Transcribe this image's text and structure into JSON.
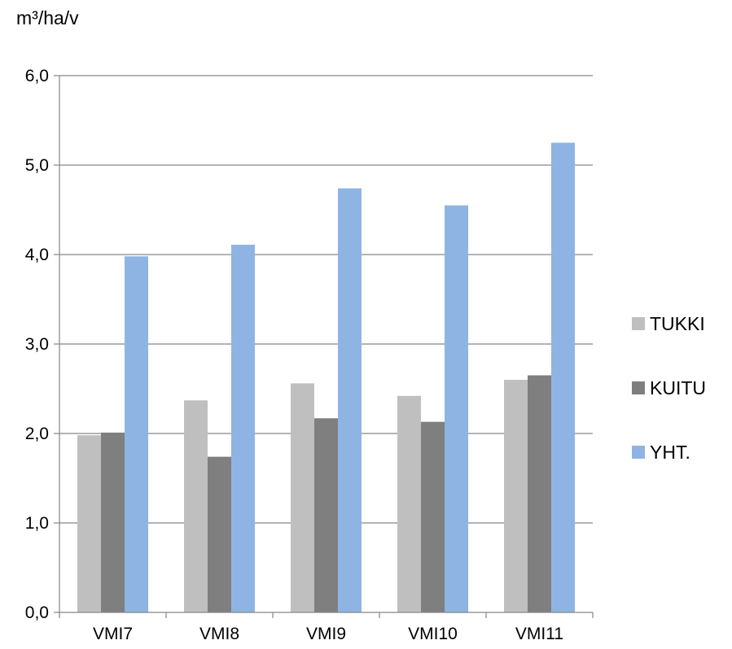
{
  "chart_data": {
    "type": "bar",
    "ylabel": "m³/ha/v",
    "categories": [
      "VMI7",
      "VMI8",
      "VMI9",
      "VMI10",
      "VMI11"
    ],
    "series": [
      {
        "name": "TUKKI",
        "color": "#bfbfbf",
        "values": [
          1.98,
          2.37,
          2.56,
          2.42,
          2.6
        ]
      },
      {
        "name": "KUITU",
        "color": "#7f7f7f",
        "values": [
          2.01,
          1.74,
          2.17,
          2.13,
          2.65
        ]
      },
      {
        "name": "YHT.",
        "color": "#8eb4e3",
        "values": [
          3.98,
          4.11,
          4.74,
          4.55,
          5.25
        ]
      }
    ],
    "ylim": [
      0,
      6
    ],
    "yticks": [
      "0,0",
      "1,0",
      "2,0",
      "3,0",
      "4,0",
      "5,0",
      "6,0"
    ],
    "grid": true,
    "legend_position": "right"
  }
}
